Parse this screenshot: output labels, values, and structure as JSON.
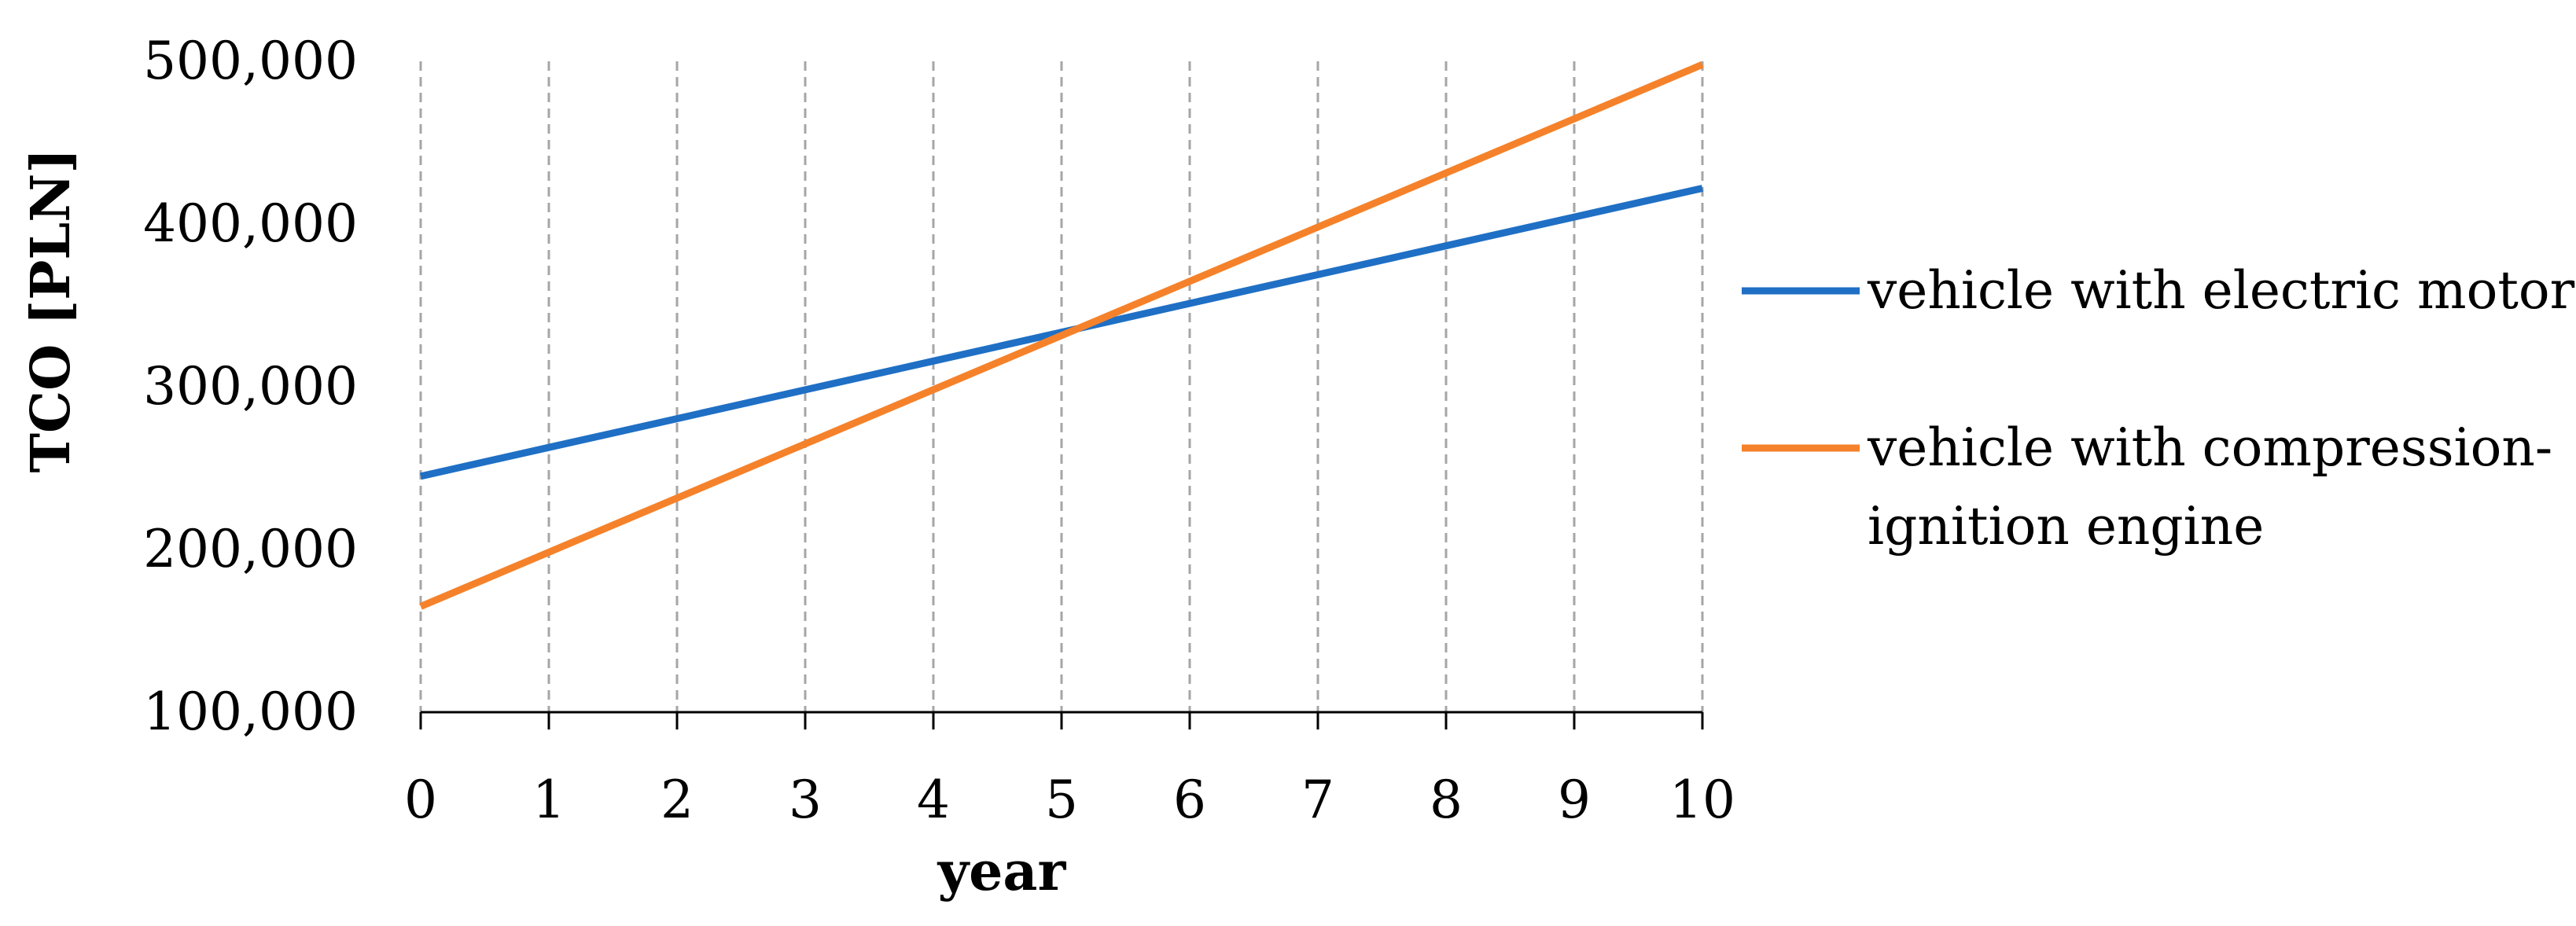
{
  "chart_data": {
    "type": "line",
    "x": [
      0,
      1,
      2,
      3,
      4,
      5,
      6,
      7,
      8,
      9,
      10
    ],
    "x_tick_labels": [
      "0",
      "1",
      "2",
      "3",
      "4",
      "5",
      "6",
      "7",
      "8",
      "9",
      "10"
    ],
    "y_tick_values": [
      100000,
      200000,
      300000,
      400000,
      500000
    ],
    "y_tick_labels": [
      "100,000",
      "200,000",
      "300,000",
      "400,000",
      "500,000"
    ],
    "xlabel": "year",
    "ylabel": "TCO [PLN]",
    "xlim": [
      0,
      10
    ],
    "ylim": [
      100000,
      500000
    ],
    "grid": "vertical dashed",
    "legend_position": "right",
    "series": [
      {
        "name": "vehicle with electric motor",
        "legend_lines": [
          "vehicle with electric motor"
        ],
        "color": "#1f6fc5",
        "values": [
          245000,
          262700,
          280400,
          298100,
          315800,
          333500,
          351200,
          368900,
          386600,
          404300,
          422000
        ]
      },
      {
        "name": "vehicle with compression-ignition engine",
        "legend_lines": [
          "vehicle with compression-",
          "ignition engine"
        ],
        "color": "#f5822a",
        "values": [
          165000,
          198300,
          231600,
          264900,
          298200,
          331500,
          364800,
          398100,
          431400,
          464700,
          498000
        ]
      }
    ]
  }
}
